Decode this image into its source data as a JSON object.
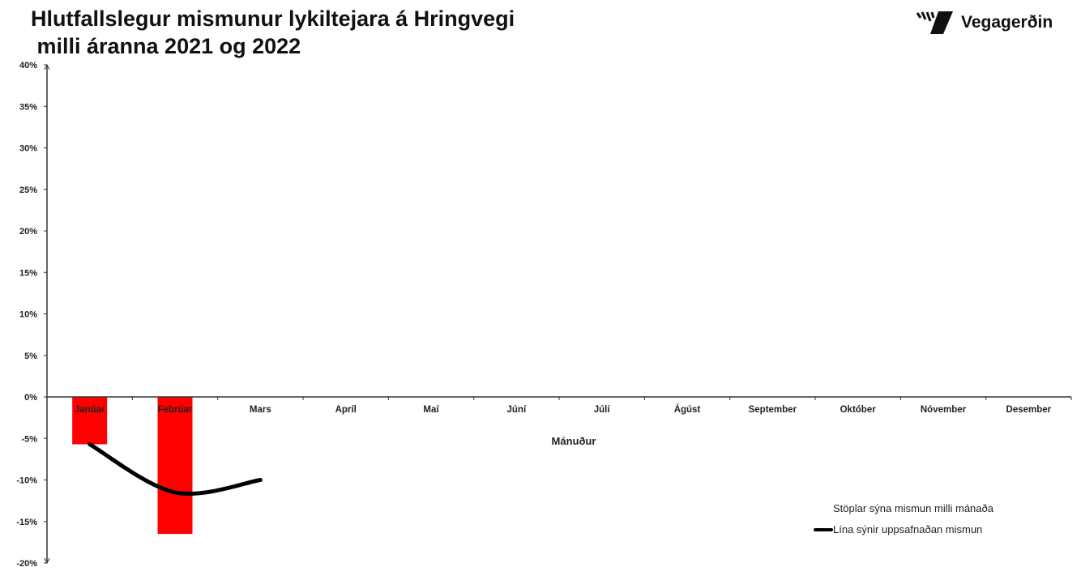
{
  "chart_data": {
    "type": "bar+line",
    "title": "Hlutfallslegur mismunur lykiltejara á Hringvegi\n milli áranna 2021 og 2022",
    "xlabel": "Mánuður",
    "ylabel": "",
    "categories": [
      "Janúar",
      "Febrúar",
      "Mars",
      "Apríl",
      "Maí",
      "Júní",
      "Júlí",
      "Ágúst",
      "September",
      "Október",
      "Nóvember",
      "Desember"
    ],
    "ylim": [
      -20,
      40
    ],
    "yticks": [
      40,
      35,
      30,
      25,
      20,
      15,
      10,
      5,
      0,
      -5,
      -10,
      -15,
      -20
    ],
    "ytick_format": "%",
    "grid": false,
    "series": [
      {
        "name": "Stöplar sýna mismun milli mánaða",
        "type": "bar",
        "color": "#ff0000",
        "values": [
          -5.7,
          -16.5,
          null,
          null,
          null,
          null,
          null,
          null,
          null,
          null,
          null,
          null
        ]
      },
      {
        "name": "Lína sýnir uppsafnaðan mismun",
        "type": "line",
        "color": "#000000",
        "values": [
          -5.7,
          -11.5,
          -10.0,
          null,
          null,
          null,
          null,
          null,
          null,
          null,
          null,
          null
        ]
      }
    ],
    "legend": [
      "Stöplar sýna mismun milli mánaða",
      "Lína sýnir uppsafnaðan mismun"
    ],
    "legend_placement": "bottom-right"
  },
  "logo": {
    "text": "Vegagerðin"
  }
}
